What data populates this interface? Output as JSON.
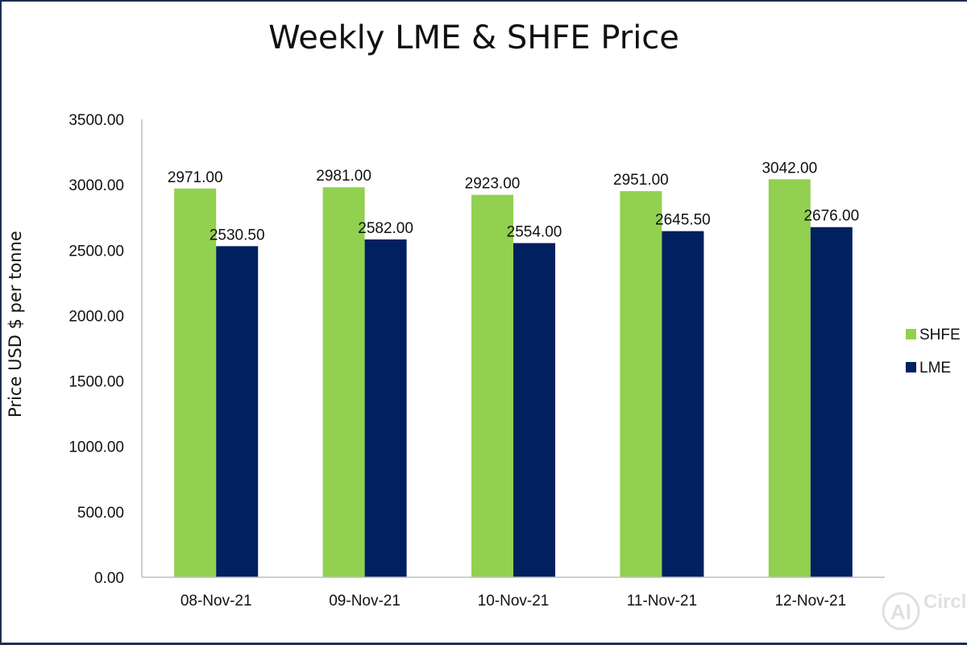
{
  "chart_data": {
    "type": "bar",
    "title": "Weekly LME & SHFE Price",
    "ylabel": "Price  USD  $  per  tonne",
    "xlabel": "",
    "categories": [
      "08-Nov-21",
      "09-Nov-21",
      "10-Nov-21",
      "11-Nov-21",
      "12-Nov-21"
    ],
    "series": [
      {
        "name": "SHFE",
        "color": "#92d050",
        "values": [
          2971.0,
          2981.0,
          2923.0,
          2951.0,
          3042.0
        ],
        "labels": [
          "2971.00",
          "2981.00",
          "2923.00",
          "2951.00",
          "3042.00"
        ]
      },
      {
        "name": "LME",
        "color": "#002060",
        "values": [
          2530.5,
          2582.0,
          2554.0,
          2645.5,
          2676.0
        ],
        "labels": [
          "2530.50",
          "2582.00",
          "2554.00",
          "2645.50",
          "2676.00"
        ]
      }
    ],
    "ylim": [
      0,
      3500
    ],
    "yticks": [
      "0.00",
      "500.00",
      "1000.00",
      "1500.00",
      "2000.00",
      "2500.00",
      "3000.00",
      "3500.00"
    ],
    "grid": false,
    "legend_position": "right"
  },
  "watermark": {
    "text": "AlCircle",
    "color": "#c8c8c8"
  }
}
